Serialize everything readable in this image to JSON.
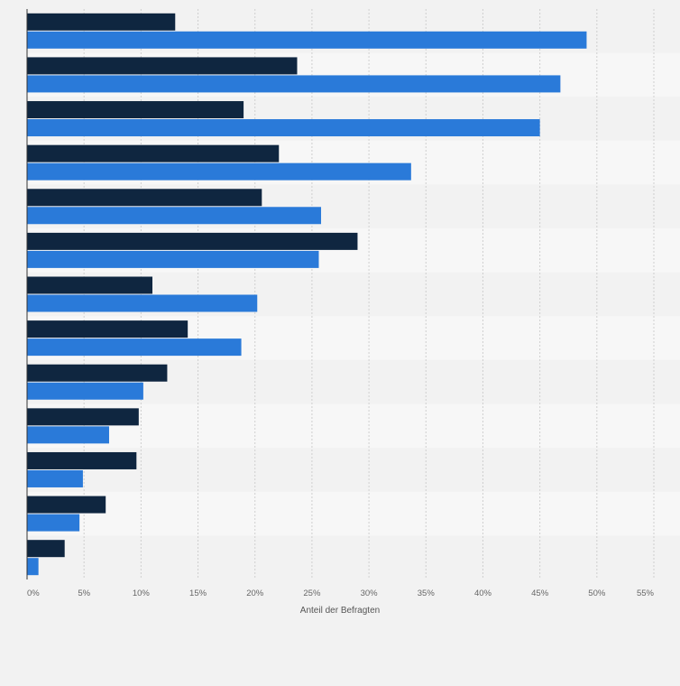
{
  "chart_data": {
    "type": "bar",
    "orientation": "horizontal",
    "title": "",
    "xlabel": "Anteil der Befragten",
    "ylabel": "",
    "xlim": [
      0,
      55
    ],
    "x_ticks": [
      "0%",
      "5%",
      "10%",
      "15%",
      "20%",
      "25%",
      "30%",
      "35%",
      "40%",
      "45%",
      "50%",
      "55%"
    ],
    "categories": [
      "",
      "",
      "",
      "",
      "",
      "",
      "",
      "",
      "",
      "",
      "",
      "",
      ""
    ],
    "series": [
      {
        "color": "#0f2640",
        "values": [
          13.0,
          23.7,
          19.0,
          22.1,
          20.6,
          29.0,
          11.0,
          14.1,
          12.3,
          9.8,
          9.6,
          6.9,
          3.3
        ]
      },
      {
        "color": "#2a7ad9",
        "values": [
          49.1,
          46.8,
          45.0,
          33.7,
          25.8,
          25.6,
          20.2,
          18.8,
          10.2,
          7.2,
          4.9,
          4.6,
          1.0
        ]
      }
    ],
    "grid": true,
    "legend": "none",
    "colors": {
      "background": "#f2f2f2",
      "band_light": "#f7f7f7",
      "band_dark": "#f2f2f2",
      "grid": "#cfcfcf",
      "axis": "#333333"
    }
  }
}
